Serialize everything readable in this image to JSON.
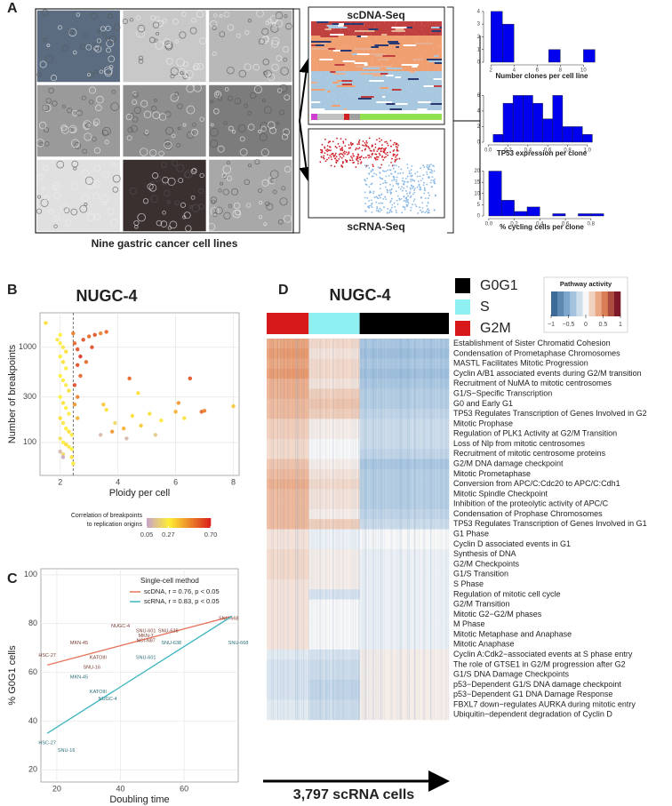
{
  "figure": {
    "panel_labels": [
      "A",
      "B",
      "C",
      "D"
    ]
  },
  "panel_a": {
    "caption": "Nine gastric cancer cell lines",
    "dna_title": "scDNA-Seq",
    "rna_title": "scRNA-Seq"
  },
  "chart_data": [
    {
      "type": "histogram",
      "xlabel": "Number clones per cell line",
      "color": "#0000ee",
      "bins": [
        2,
        3,
        4,
        5,
        6,
        7,
        8,
        9,
        10,
        11
      ],
      "values": [
        4,
        3,
        0,
        0,
        0,
        1,
        0,
        0,
        1
      ],
      "xlim": [
        1.6,
        11.2
      ],
      "xticks": [
        2,
        4,
        6,
        8,
        10
      ],
      "ylim": [
        0,
        4.2
      ],
      "yticks": [
        0,
        1,
        2,
        3,
        4
      ]
    },
    {
      "type": "histogram",
      "xlabel": "TP53 expression per clone",
      "color": "#0000ee",
      "bins": [
        0.05,
        0.15,
        0.25,
        0.35,
        0.45,
        0.55,
        0.65,
        0.75,
        0.85,
        0.95,
        1.05
      ],
      "values": [
        1,
        5,
        6,
        6,
        5,
        3,
        6,
        2,
        2,
        1
      ],
      "xlim": [
        -0.02,
        1.1
      ],
      "xticks": [
        {
          "value": 0,
          "label": "0.0"
        },
        0.2,
        0.4,
        0.6,
        0.8,
        {
          "value": 1,
          "label": "1.0"
        }
      ],
      "ylim": [
        0,
        6.5
      ],
      "yticks": [
        0,
        2,
        4,
        6
      ]
    },
    {
      "type": "histogram",
      "xlabel": "% cycling cells per clone",
      "color": "#0000ee",
      "bins": [
        0,
        0.1,
        0.2,
        0.3,
        0.4,
        0.5,
        0.6,
        0.7,
        0.8,
        0.9
      ],
      "values": [
        20,
        7,
        2,
        4,
        0,
        1,
        0,
        1,
        1
      ],
      "xlim": [
        -0.02,
        0.85
      ],
      "xticks": [
        {
          "value": 0,
          "label": "0.0"
        },
        0.2,
        0.4,
        0.6,
        0.8
      ],
      "ylim": [
        0,
        21
      ],
      "yticks": [
        0,
        5,
        10,
        15,
        20
      ]
    },
    {
      "type": "scatter",
      "title": "NUGC-4",
      "xlabel": "Ploidy per cell",
      "ylabel": "Number of breakpoints",
      "x": [
        1.5,
        1.9,
        2.0,
        2.1,
        2.2,
        2.0,
        2.1,
        2.2,
        2.0,
        2.1,
        2.2,
        2.3,
        2.0,
        2.1,
        2.2,
        2.3,
        2.0,
        2.1,
        2.2,
        2.3,
        2.4,
        2.0,
        2.1,
        2.2,
        2.3,
        2.4,
        2.0,
        2.1,
        2.4,
        2.45,
        2.45,
        2.5,
        2.6,
        2.7,
        2.8,
        3.0,
        3.2,
        3.4,
        3.6,
        2.6,
        2.7,
        2.5,
        2.6,
        2.5,
        2.6,
        3.1,
        2.9,
        3.5,
        3.6,
        3.8,
        3.9,
        4.2,
        4.3,
        4.5,
        4.8,
        4.4,
        4.7,
        5.1,
        5.5,
        6.0,
        6.1,
        6.3,
        6.5,
        6.9,
        7.0,
        8.0,
        5.3,
        3.4,
        2.1,
        2.0
      ],
      "values": [
        1800,
        1200,
        1100,
        1000,
        900,
        800,
        700,
        600,
        500,
        450,
        400,
        350,
        300,
        260,
        230,
        200,
        180,
        160,
        140,
        130,
        120,
        110,
        100,
        95,
        90,
        85,
        80,
        75,
        70,
        60,
        1400,
        1100,
        950,
        800,
        1200,
        1300,
        1350,
        1400,
        1450,
        650,
        500,
        400,
        300,
        250,
        180,
        1000,
        700,
        250,
        220,
        130,
        160,
        140,
        110,
        190,
        150,
        470,
        330,
        200,
        170,
        210,
        260,
        180,
        470,
        210,
        215,
        240,
        120,
        120,
        70,
        1350
      ],
      "color_values": [
        0.3,
        0.25,
        0.27,
        0.25,
        0.3,
        0.27,
        0.3,
        0.26,
        0.27,
        0.28,
        0.25,
        0.3,
        0.27,
        0.3,
        0.27,
        0.26,
        0.3,
        0.25,
        0.27,
        0.3,
        0.28,
        0.22,
        0.27,
        0.3,
        0.25,
        0.27,
        0.1,
        0.2,
        0.3,
        0.27,
        0.5,
        0.55,
        0.6,
        0.65,
        0.6,
        0.55,
        0.6,
        0.5,
        0.55,
        0.6,
        0.55,
        0.6,
        0.5,
        0.45,
        0.4,
        0.6,
        0.55,
        0.35,
        0.3,
        0.45,
        0.2,
        0.4,
        0.1,
        0.3,
        0.35,
        0.55,
        0.3,
        0.3,
        0.28,
        0.4,
        0.45,
        0.3,
        0.6,
        0.55,
        0.5,
        0.35,
        0.15,
        0.1,
        0.05,
        0.27
      ],
      "xlim": [
        1.3,
        8.2
      ],
      "xticks": [
        2,
        4,
        6,
        8
      ],
      "ylim": [
        45,
        2300
      ],
      "yticks": [
        100,
        300,
        1000
      ],
      "log_y": true,
      "grid": true,
      "reference_x": 2.45,
      "colorbar": {
        "title_lines": [
          "Correlation of breakpoints",
          "to replication origins"
        ],
        "ticks": [
          0.05,
          0.27,
          {
            "value": 0.7,
            "label": "0.70"
          }
        ],
        "colors": [
          "#c9a6c6",
          "#ffee33",
          "#d7191c"
        ]
      }
    },
    {
      "type": "scatter",
      "xlabel": "Doubling time",
      "ylabel": "% G0G1 cells",
      "legend_title": "Single-cell method",
      "legend": "top-right",
      "grid": true,
      "xlim": [
        15,
        77
      ],
      "xticks": [
        20,
        40,
        60
      ],
      "ylim": [
        15,
        102.5
      ],
      "yticks": [
        20,
        40,
        60,
        80,
        100
      ],
      "series": [
        {
          "name": "scDNA, r = 0.76, p < 0.05",
          "color": "#e8735a",
          "x": [
            17,
            27,
            31,
            33,
            40,
            48,
            48,
            48,
            55,
            74
          ],
          "values": [
            67,
            72,
            62,
            66,
            79,
            77,
            75,
            73,
            77,
            82
          ],
          "labels": [
            "HSC-27",
            "MKN-45",
            "SNU-16",
            "KATOIII",
            "NUGC-4",
            "SNU-601",
            "MKN-7",
            "NCI-N87",
            "SNU-638",
            "SNU-668"
          ],
          "fit_x": [
            17,
            75
          ],
          "fit_values": [
            63,
            83
          ]
        },
        {
          "name": "scRNA, r = 0.83, p < 0.05",
          "color": "#3fb6c0",
          "x": [
            17,
            23,
            27,
            33,
            36,
            48,
            56,
            77
          ],
          "values": [
            31,
            28,
            58,
            52,
            49,
            66,
            72,
            72
          ],
          "labels": [
            "HSC-27",
            "SNU-16",
            "MKN-45",
            "KATOIII",
            "NUGC-4",
            "SNU-601",
            "SNU-638",
            "SNU-668"
          ],
          "fit_x": [
            17,
            75
          ],
          "fit_values": [
            35,
            83
          ]
        }
      ]
    },
    {
      "type": "heatmap",
      "title": "NUGC-4",
      "xlabel": "3,797 scRNA cells",
      "phases": [
        {
          "name": "G0G1",
          "color": "#000000",
          "fraction": 0.49
        },
        {
          "name": "S",
          "color": "#8ff0f2",
          "fraction": 0.28
        },
        {
          "name": "G2M",
          "color": "#d7191c",
          "fraction": 0.23
        }
      ],
      "colorbar": {
        "title": "Pathway activity",
        "ticks": [
          {
            "value": -1,
            "label": "−1"
          },
          {
            "value": -0.5,
            "label": "−0.5"
          },
          0,
          0.5,
          1
        ],
        "colors": [
          "#2b5c8a",
          "#86afd4",
          "#f7f7f7",
          "#e58b5a",
          "#67001f"
        ]
      },
      "rows": [
        {
          "label": "Establishment of Sister Chromatid Cohesion",
          "values": [
            -0.35,
            0.15,
            0.4
          ]
        },
        {
          "label": "Condensation of Prometaphase Chromosomes",
          "values": [
            -0.4,
            0.1,
            0.45
          ]
        },
        {
          "label": "MASTL Facilitates Mitotic Progression",
          "values": [
            -0.35,
            0.15,
            0.4
          ]
        },
        {
          "label": "Cyclin A/B1 associated events during G2/M transition",
          "values": [
            -0.4,
            0.15,
            0.45
          ]
        },
        {
          "label": "Recruitment of NuMA to mitotic centrosomes",
          "values": [
            -0.35,
            0.1,
            0.35
          ]
        },
        {
          "label": "G1/S−Specific Transcription",
          "values": [
            -0.3,
            0.2,
            0.35
          ]
        },
        {
          "label": "G0 and Early G1",
          "values": [
            -0.3,
            0.25,
            0.3
          ]
        },
        {
          "label": "TP53 Regulates Transcription of Genes Involved in G2",
          "values": [
            -0.25,
            0.2,
            0.3
          ]
        },
        {
          "label": "Mitotic Prophase",
          "values": [
            -0.2,
            0.05,
            0.2
          ]
        },
        {
          "label": "Regulation of PLK1 Activity at G2/M Transition",
          "values": [
            -0.2,
            0.05,
            0.2
          ]
        },
        {
          "label": "Loss of Nlp from mitotic centrosomes",
          "values": [
            -0.2,
            0.0,
            0.15
          ]
        },
        {
          "label": "Recruitment of mitotic centrosome proteins",
          "values": [
            -0.25,
            0.0,
            0.15
          ]
        },
        {
          "label": "G2/M DNA damage checkpoint",
          "values": [
            -0.35,
            0.05,
            0.25
          ]
        },
        {
          "label": "Mitotic Prometaphase",
          "values": [
            -0.3,
            0.1,
            0.3
          ]
        },
        {
          "label": "Conversion from APC/C:Cdc20 to APC/C:Cdh1",
          "values": [
            -0.3,
            0.15,
            0.35
          ]
        },
        {
          "label": "Mitotic Spindle Checkpoint",
          "values": [
            -0.3,
            0.1,
            0.3
          ]
        },
        {
          "label": "Inhibition of the proteolytic activity of APC/C",
          "values": [
            -0.3,
            0.1,
            0.3
          ]
        },
        {
          "label": "Condensation of Prophase Chromosomes",
          "values": [
            -0.25,
            0.05,
            0.3
          ]
        },
        {
          "label": "TP53 Regulates Transcription of Genes Involved in G1",
          "values": [
            -0.2,
            0.2,
            0.3
          ]
        },
        {
          "label": "G1 Phase",
          "values": [
            0.0,
            -0.05,
            0.1
          ]
        },
        {
          "label": "Cyclin D associated events in G1",
          "values": [
            0.0,
            -0.05,
            0.1
          ]
        },
        {
          "label": "Synthesis of DNA",
          "values": [
            -0.05,
            0.05,
            0.15
          ]
        },
        {
          "label": "G2/M Checkpoints",
          "values": [
            -0.05,
            0.05,
            0.15
          ]
        },
        {
          "label": "G1/S Transition",
          "values": [
            -0.05,
            0.05,
            0.15
          ]
        },
        {
          "label": "S Phase",
          "values": [
            -0.05,
            0.05,
            0.1
          ]
        },
        {
          "label": "Regulation of mitotic cell cycle",
          "values": [
            -0.05,
            -0.15,
            0.1
          ]
        },
        {
          "label": "G2/M Transition",
          "values": [
            -0.05,
            0.0,
            0.1
          ]
        },
        {
          "label": "Mitotic G2−G2/M phases",
          "values": [
            -0.05,
            0.0,
            0.1
          ]
        },
        {
          "label": "M Phase",
          "values": [
            -0.05,
            0.0,
            0.1
          ]
        },
        {
          "label": "Mitotic Metaphase and Anaphase",
          "values": [
            -0.05,
            0.0,
            0.1
          ]
        },
        {
          "label": "Mitotic Anaphase",
          "values": [
            -0.05,
            0.0,
            0.1
          ]
        },
        {
          "label": "Cyclin A:Cdk2−associated events at S phase entry",
          "values": [
            0.05,
            -0.15,
            -0.1
          ]
        },
        {
          "label": "The role of GTSE1 in G2/M progression after G2",
          "values": [
            0.05,
            -0.2,
            -0.15
          ]
        },
        {
          "label": "G1/S DNA Damage Checkpoints",
          "values": [
            0.05,
            -0.2,
            -0.15
          ]
        },
        {
          "label": "p53−Dependent G1/S DNA damage checkpoint",
          "values": [
            0.05,
            -0.25,
            -0.15
          ]
        },
        {
          "label": "p53−Dependent G1 DNA Damage Response",
          "values": [
            0.05,
            -0.25,
            -0.15
          ]
        },
        {
          "label": "FBXL7 down−regulates AURKA during mitotic entry",
          "values": [
            0.05,
            -0.2,
            -0.1
          ]
        },
        {
          "label": "Ubiquitin−dependent degradation of Cyclin D",
          "values": [
            0.05,
            -0.2,
            -0.1
          ]
        }
      ]
    }
  ]
}
